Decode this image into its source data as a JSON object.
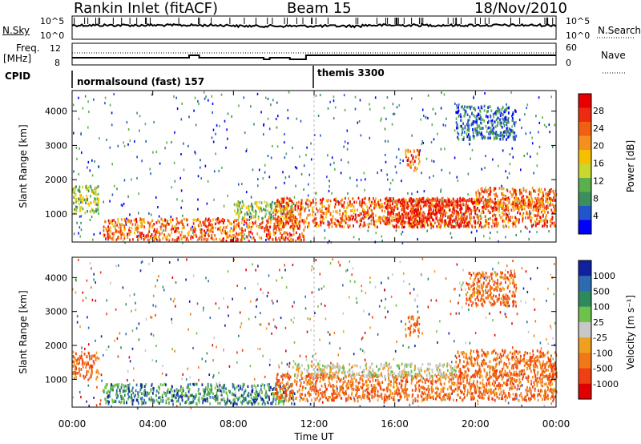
{
  "header": {
    "station": "Rankin Inlet (fitACF)",
    "beam": "Beam 15",
    "date": "18/Nov/2010"
  },
  "strip_labels": {
    "nsky": "N.Sky",
    "nsky_top": "10^5",
    "nsky_bottom": "10^0",
    "nsearch": "N.Search",
    "nsearch_top": "10^5",
    "nsearch_bottom": "10^0",
    "freq": "Freq.",
    "freq_unit": "[MHz]",
    "freq_top": "12",
    "freq_bottom": "8",
    "nave": "Nave",
    "nave_top": "60",
    "nave_bottom": "0",
    "cpid": "CPID"
  },
  "cpid_segments": [
    {
      "label": "normalsound (fast) 157",
      "start_hour": 0
    },
    {
      "label": "themis 3300",
      "start_hour": 12.0
    }
  ],
  "colors": {
    "power_scale": [
      "#0000ff",
      "#2255cc",
      "#3c8f5c",
      "#5ab04a",
      "#c8d830",
      "#f6c000",
      "#f59020",
      "#f06010",
      "#ee2a10",
      "#e80000"
    ],
    "velocity_scale": [
      "#1020a0",
      "#2d6bb0",
      "#2e8a5a",
      "#6cc24a",
      "#c8c8c8",
      "#f0a020",
      "#f07818",
      "#ee4010",
      "#e00000"
    ]
  },
  "chart_data": [
    {
      "type": "heatmap",
      "name": "power-panel",
      "ylabel": "Slant Range [km]",
      "ylim": [
        180,
        4600
      ],
      "yticks": [
        "1000",
        "2000",
        "3000",
        "4000"
      ],
      "colorbar_label": "Power [dB]",
      "colorbar_ticks": [
        "4",
        "8",
        "12",
        "16",
        "20",
        "24",
        "28"
      ],
      "bands": [
        {
          "t0": 0.0,
          "t1": 1.3,
          "r0": 1050,
          "r1": 1850,
          "level": "mid"
        },
        {
          "t0": 1.5,
          "t1": 11.5,
          "r0": 250,
          "r1": 900,
          "level": "high"
        },
        {
          "t0": 8.0,
          "t1": 11.0,
          "r0": 900,
          "r1": 1400,
          "level": "mid"
        },
        {
          "t0": 10.0,
          "t1": 24.0,
          "r0": 650,
          "r1": 1500,
          "level": "high"
        },
        {
          "t0": 15.5,
          "t1": 20.0,
          "r0": 650,
          "r1": 1500,
          "level": "max"
        },
        {
          "t0": 20.0,
          "t1": 24.0,
          "r0": 1200,
          "r1": 1800,
          "level": "high"
        },
        {
          "t0": 16.5,
          "t1": 17.2,
          "r0": 2300,
          "r1": 2900,
          "level": "high"
        },
        {
          "t0": 19.0,
          "t1": 22.0,
          "r0": 3200,
          "r1": 4200,
          "level": "low"
        }
      ]
    },
    {
      "type": "heatmap",
      "name": "velocity-panel",
      "ylabel": "Slant Range [km]",
      "ylim": [
        180,
        4600
      ],
      "yticks": [
        "1000",
        "2000",
        "3000",
        "4000"
      ],
      "colorbar_label": "Velocity [m s⁻¹]",
      "colorbar_ticks": [
        "1000",
        "500",
        "100",
        "25",
        "-25",
        "-100",
        "-500",
        "-1000"
      ],
      "bands": [
        {
          "t0": 0.0,
          "t1": 1.3,
          "r0": 1050,
          "r1": 1850,
          "level": "neg"
        },
        {
          "t0": 1.5,
          "t1": 11.0,
          "r0": 300,
          "r1": 900,
          "level": "pos"
        },
        {
          "t0": 10.0,
          "t1": 24.0,
          "r0": 400,
          "r1": 1200,
          "level": "neg"
        },
        {
          "t0": 11.0,
          "t1": 19.0,
          "r0": 1100,
          "r1": 1500,
          "level": "zero"
        },
        {
          "t0": 19.0,
          "t1": 24.0,
          "r0": 1100,
          "r1": 1900,
          "level": "neg"
        },
        {
          "t0": 16.5,
          "t1": 17.2,
          "r0": 2300,
          "r1": 2900,
          "level": "neg"
        },
        {
          "t0": 19.5,
          "t1": 22.0,
          "r0": 3200,
          "r1": 4200,
          "level": "neg"
        }
      ]
    }
  ],
  "xaxis": {
    "label": "Time UT",
    "ticks": [
      "00:00",
      "04:00",
      "08:00",
      "12:00",
      "16:00",
      "20:00",
      "00:00"
    ]
  }
}
